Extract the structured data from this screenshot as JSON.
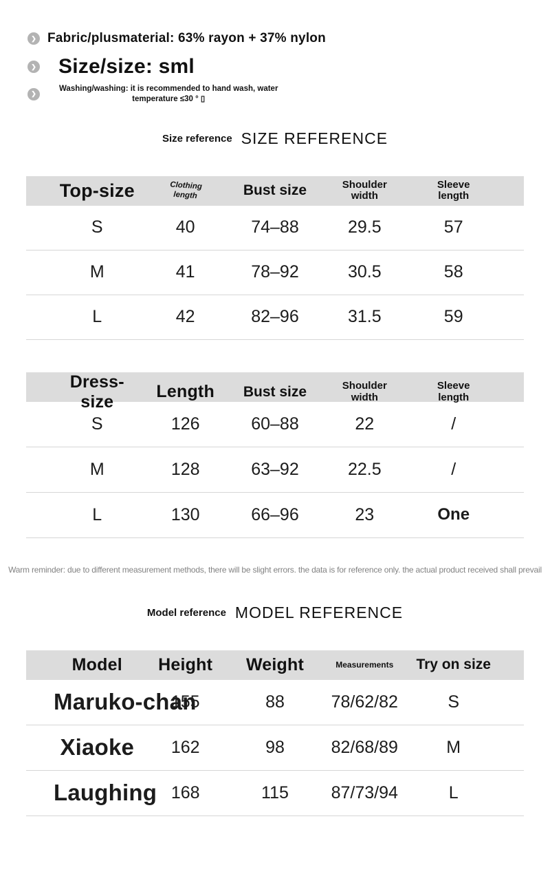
{
  "attributes": {
    "fabric": "Fabric/plusmaterial: 63% rayon + 37% nylon",
    "size": "Size/size: sml",
    "washing_line1": "Washing/washing: it is recommended to hand wash, water",
    "washing_line2": "temperature ≤30 ° ▯"
  },
  "size_section": {
    "title_small": "Size reference",
    "title_large": "SIZE REFERENCE"
  },
  "top_table": {
    "headers": [
      "Top-size",
      "Clothing length",
      "Bust size",
      "Shoulder width",
      "Sleeve length"
    ],
    "rows": [
      [
        "S",
        "40",
        "74–88",
        "29.5",
        "57"
      ],
      [
        "M",
        "41",
        "78–92",
        "30.5",
        "58"
      ],
      [
        "L",
        "42",
        "82–96",
        "31.5",
        "59"
      ]
    ]
  },
  "dress_table": {
    "headers": [
      "Dress-size",
      "Length",
      "Bust size",
      "Shoulder width",
      "Sleeve length"
    ],
    "rows": [
      [
        "S",
        "126",
        "60–88",
        "22",
        "/"
      ],
      [
        "M",
        "128",
        "63–92",
        "22.5",
        "/"
      ],
      [
        "L",
        "130",
        "66–96",
        "23",
        "One"
      ]
    ]
  },
  "reminder": "Warm reminder: due to different measurement methods, there will be slight errors. the data is for reference only. the actual product received shall prevail",
  "model_section": {
    "title_small": "Model reference",
    "title_large": "MODEL REFERENCE"
  },
  "model_table": {
    "headers": [
      "Model",
      "Height",
      "Weight",
      "Measurements",
      "Try on size"
    ],
    "rows": [
      [
        "Maruko-chan",
        "155",
        "88",
        "78/62/82",
        "S"
      ],
      [
        "Xiaoke",
        "162",
        "98",
        "82/68/89",
        "M"
      ],
      [
        "Laughing",
        "168",
        "115",
        "87/73/94",
        "L"
      ]
    ]
  },
  "icons": {
    "bullet": "chevron-right-icon",
    "bullet_glyph": "❯"
  },
  "colors": {
    "header_bg": "#dcdcdc",
    "divider": "#d6d6d6",
    "text": "#111111",
    "muted_text": "#828282",
    "bullet_icon_bg": "#b3b3b3"
  }
}
